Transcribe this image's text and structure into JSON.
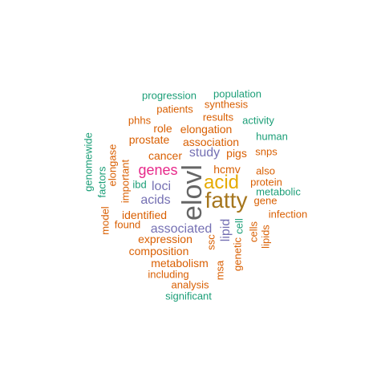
{
  "palette": {
    "teal": "#1b9e77",
    "orange": "#d95f02",
    "purple": "#7570b3",
    "magenta": "#e7298a",
    "gold": "#e6ab02",
    "brown": "#a6761d",
    "gray": "#666666"
  },
  "words": [
    {
      "text": "elovl",
      "color": "gray"
    },
    {
      "text": "fatty",
      "color": "brown"
    },
    {
      "text": "acid",
      "color": "gold"
    },
    {
      "text": "genes",
      "color": "magenta"
    },
    {
      "text": "study",
      "color": "purple"
    },
    {
      "text": "loci",
      "color": "purple"
    },
    {
      "text": "acids",
      "color": "purple"
    },
    {
      "text": "associated",
      "color": "purple"
    },
    {
      "text": "lipid",
      "color": "purple"
    },
    {
      "text": "elongation",
      "color": "orange"
    },
    {
      "text": "association",
      "color": "orange"
    },
    {
      "text": "prostate",
      "color": "orange"
    },
    {
      "text": "cancer",
      "color": "orange"
    },
    {
      "text": "hcmv",
      "color": "orange"
    },
    {
      "text": "identified",
      "color": "orange"
    },
    {
      "text": "expression",
      "color": "orange"
    },
    {
      "text": "composition",
      "color": "orange"
    },
    {
      "text": "metabolism",
      "color": "orange"
    },
    {
      "text": "role",
      "color": "orange"
    },
    {
      "text": "results",
      "color": "orange"
    },
    {
      "text": "pigs",
      "color": "orange"
    },
    {
      "text": "synthesis",
      "color": "orange"
    },
    {
      "text": "patients",
      "color": "orange"
    },
    {
      "text": "phhs",
      "color": "orange"
    },
    {
      "text": "snps",
      "color": "orange"
    },
    {
      "text": "also",
      "color": "orange"
    },
    {
      "text": "protein",
      "color": "orange"
    },
    {
      "text": "gene",
      "color": "orange"
    },
    {
      "text": "infection",
      "color": "orange"
    },
    {
      "text": "found",
      "color": "orange"
    },
    {
      "text": "including",
      "color": "orange"
    },
    {
      "text": "analysis",
      "color": "orange"
    },
    {
      "text": "elongase",
      "color": "orange"
    },
    {
      "text": "important",
      "color": "orange"
    },
    {
      "text": "model",
      "color": "orange"
    },
    {
      "text": "ssc",
      "color": "orange"
    },
    {
      "text": "msa",
      "color": "orange"
    },
    {
      "text": "genetic",
      "color": "orange"
    },
    {
      "text": "cells",
      "color": "orange"
    },
    {
      "text": "lipids",
      "color": "orange"
    },
    {
      "text": "progression",
      "color": "teal"
    },
    {
      "text": "population",
      "color": "teal"
    },
    {
      "text": "activity",
      "color": "teal"
    },
    {
      "text": "human",
      "color": "teal"
    },
    {
      "text": "metabolic",
      "color": "teal"
    },
    {
      "text": "ibd",
      "color": "teal"
    },
    {
      "text": "genomewide",
      "color": "teal"
    },
    {
      "text": "factors",
      "color": "teal"
    },
    {
      "text": "cell",
      "color": "teal"
    },
    {
      "text": "significant",
      "color": "teal"
    }
  ]
}
